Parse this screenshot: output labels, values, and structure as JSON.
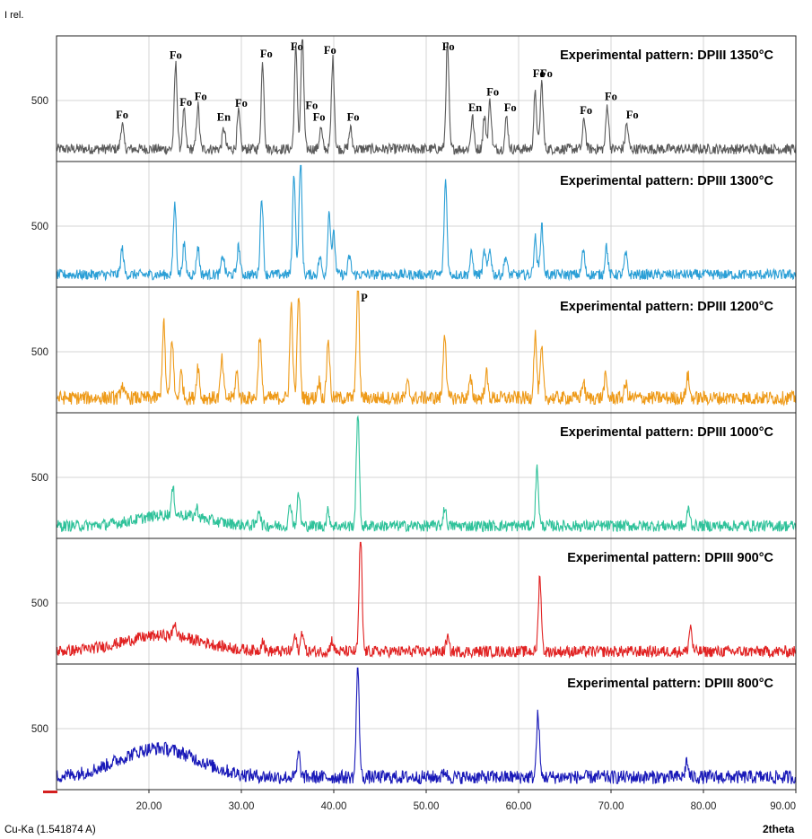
{
  "figure": {
    "ylabel": "I rel.",
    "xlabel": "2theta",
    "radiation": "Cu-Ka (1.541874 A)"
  },
  "chart_data": {
    "type": "line",
    "xlabel": "2theta",
    "ylabel": "I rel.",
    "xlim": [
      10.0,
      90.0
    ],
    "x_ticks": [
      "20.00",
      "30.00",
      "40.00",
      "50.00",
      "60.00",
      "70.00",
      "80.00",
      "90.00"
    ],
    "y_tick_label": "500",
    "grid": true,
    "panels": [
      {
        "title": "Experimental pattern: DPIII 1350°C",
        "color": "#5a5a5a",
        "baseline": 0.07,
        "noise": 0.045,
        "peaks": [
          {
            "x": 17.1,
            "h": 0.22
          },
          {
            "x": 22.9,
            "h": 0.74
          },
          {
            "x": 23.8,
            "h": 0.33
          },
          {
            "x": 25.3,
            "h": 0.38
          },
          {
            "x": 28.1,
            "h": 0.18
          },
          {
            "x": 29.7,
            "h": 0.32
          },
          {
            "x": 32.3,
            "h": 0.75
          },
          {
            "x": 35.9,
            "h": 0.88
          },
          {
            "x": 36.6,
            "h": 1.0
          },
          {
            "x": 38.6,
            "h": 0.18
          },
          {
            "x": 39.9,
            "h": 0.78
          },
          {
            "x": 41.8,
            "h": 0.18
          },
          {
            "x": 52.3,
            "h": 0.92
          },
          {
            "x": 55.0,
            "h": 0.28
          },
          {
            "x": 56.3,
            "h": 0.28
          },
          {
            "x": 56.9,
            "h": 0.42
          },
          {
            "x": 58.7,
            "h": 0.28
          },
          {
            "x": 61.8,
            "h": 0.48
          },
          {
            "x": 62.5,
            "h": 0.58
          },
          {
            "x": 67.1,
            "h": 0.26
          },
          {
            "x": 69.6,
            "h": 0.38
          },
          {
            "x": 71.7,
            "h": 0.22
          }
        ],
        "annotations": [
          {
            "label": "Fo",
            "x": 17.1
          },
          {
            "label": "Fo",
            "x": 22.9
          },
          {
            "label": "Fo",
            "x": 24.0
          },
          {
            "label": "Fo",
            "x": 25.6
          },
          {
            "label": "En",
            "x": 28.1
          },
          {
            "label": "Fo",
            "x": 30.0
          },
          {
            "label": "Fo",
            "x": 32.7
          },
          {
            "label": "Fo",
            "x": 36.0
          },
          {
            "label": "Fo",
            "x": 37.6
          },
          {
            "label": "Fo",
            "x": 38.4
          },
          {
            "label": "Fo",
            "x": 39.6
          },
          {
            "label": "Fo",
            "x": 42.1
          },
          {
            "label": "Fo",
            "x": 52.4
          },
          {
            "label": "En",
            "x": 55.3
          },
          {
            "label": "Fo",
            "x": 57.2
          },
          {
            "label": "Fo",
            "x": 59.1
          },
          {
            "label": "Fo",
            "x": 62.2
          },
          {
            "label": "Fo",
            "x": 63.0
          },
          {
            "label": "Fo",
            "x": 67.3
          },
          {
            "label": "Fo",
            "x": 70.0
          },
          {
            "label": "Fo",
            "x": 72.3
          }
        ]
      },
      {
        "title": "Experimental pattern: DPIII 1300°C",
        "color": "#2b9fd6",
        "baseline": 0.07,
        "noise": 0.045,
        "peaks": [
          {
            "x": 17.1,
            "h": 0.23
          },
          {
            "x": 22.8,
            "h": 0.62
          },
          {
            "x": 23.8,
            "h": 0.26
          },
          {
            "x": 25.3,
            "h": 0.24
          },
          {
            "x": 28.0,
            "h": 0.17
          },
          {
            "x": 29.7,
            "h": 0.25
          },
          {
            "x": 32.2,
            "h": 0.68
          },
          {
            "x": 35.7,
            "h": 0.88
          },
          {
            "x": 36.4,
            "h": 1.0
          },
          {
            "x": 38.5,
            "h": 0.15
          },
          {
            "x": 39.5,
            "h": 0.55
          },
          {
            "x": 40.0,
            "h": 0.35
          },
          {
            "x": 41.7,
            "h": 0.16
          },
          {
            "x": 52.1,
            "h": 0.82
          },
          {
            "x": 54.9,
            "h": 0.18
          },
          {
            "x": 56.3,
            "h": 0.2
          },
          {
            "x": 56.9,
            "h": 0.22
          },
          {
            "x": 58.6,
            "h": 0.16
          },
          {
            "x": 61.8,
            "h": 0.32
          },
          {
            "x": 62.5,
            "h": 0.43
          },
          {
            "x": 67.0,
            "h": 0.21
          },
          {
            "x": 69.5,
            "h": 0.25
          },
          {
            "x": 71.6,
            "h": 0.18
          }
        ],
        "annotations": []
      },
      {
        "title": "Experimental pattern: DPIII 1200°C",
        "color": "#ee9a18",
        "baseline": 0.09,
        "noise": 0.06,
        "peaks": [
          {
            "x": 17.1,
            "h": 0.12
          },
          {
            "x": 21.6,
            "h": 0.65
          },
          {
            "x": 22.5,
            "h": 0.52
          },
          {
            "x": 23.5,
            "h": 0.22
          },
          {
            "x": 25.3,
            "h": 0.28
          },
          {
            "x": 27.9,
            "h": 0.33
          },
          {
            "x": 29.5,
            "h": 0.22
          },
          {
            "x": 32.0,
            "h": 0.55
          },
          {
            "x": 35.4,
            "h": 0.82
          },
          {
            "x": 36.2,
            "h": 0.9
          },
          {
            "x": 38.4,
            "h": 0.15
          },
          {
            "x": 39.4,
            "h": 0.52
          },
          {
            "x": 42.6,
            "h": 1.0
          },
          {
            "x": 48.0,
            "h": 0.12
          },
          {
            "x": 52.0,
            "h": 0.58
          },
          {
            "x": 54.8,
            "h": 0.15
          },
          {
            "x": 56.5,
            "h": 0.22
          },
          {
            "x": 61.8,
            "h": 0.55
          },
          {
            "x": 62.5,
            "h": 0.42
          },
          {
            "x": 67.0,
            "h": 0.14
          },
          {
            "x": 69.4,
            "h": 0.18
          },
          {
            "x": 71.6,
            "h": 0.12
          },
          {
            "x": 78.3,
            "h": 0.2
          }
        ],
        "annotations": [
          {
            "label": "P",
            "x": 43.3
          }
        ]
      },
      {
        "title": "Experimental pattern: DPIII 1000°C",
        "color": "#2fc29a",
        "baseline": 0.07,
        "noise": 0.05,
        "hump": {
          "center": 22.5,
          "width": 5.0,
          "height": 0.1
        },
        "peaks": [
          {
            "x": 22.6,
            "h": 0.22
          },
          {
            "x": 25.2,
            "h": 0.08
          },
          {
            "x": 31.9,
            "h": 0.15
          },
          {
            "x": 35.3,
            "h": 0.2
          },
          {
            "x": 36.2,
            "h": 0.28
          },
          {
            "x": 39.4,
            "h": 0.13
          },
          {
            "x": 42.6,
            "h": 1.0
          },
          {
            "x": 52.0,
            "h": 0.16
          },
          {
            "x": 62.0,
            "h": 0.5
          },
          {
            "x": 78.4,
            "h": 0.15
          }
        ],
        "annotations": []
      },
      {
        "title": "Experimental pattern: DPIII 900°C",
        "color": "#e12222",
        "baseline": 0.07,
        "noise": 0.05,
        "hump": {
          "center": 21.5,
          "width": 6.0,
          "height": 0.14
        },
        "peaks": [
          {
            "x": 22.8,
            "h": 0.12
          },
          {
            "x": 32.3,
            "h": 0.1
          },
          {
            "x": 35.8,
            "h": 0.13
          },
          {
            "x": 36.6,
            "h": 0.18
          },
          {
            "x": 39.8,
            "h": 0.1
          },
          {
            "x": 42.9,
            "h": 1.0
          },
          {
            "x": 52.3,
            "h": 0.12
          },
          {
            "x": 62.3,
            "h": 0.66
          },
          {
            "x": 78.6,
            "h": 0.22
          }
        ],
        "annotations": []
      },
      {
        "title": "Experimental pattern: DPIII 800°C",
        "color": "#1818b8",
        "baseline": 0.07,
        "noise": 0.06,
        "hump": {
          "center": 21.0,
          "width": 6.0,
          "height": 0.25
        },
        "peaks": [
          {
            "x": 36.2,
            "h": 0.2
          },
          {
            "x": 42.6,
            "h": 1.0
          },
          {
            "x": 52.0,
            "h": 0.06
          },
          {
            "x": 62.1,
            "h": 0.55
          },
          {
            "x": 78.2,
            "h": 0.14
          }
        ],
        "annotations": []
      }
    ]
  }
}
